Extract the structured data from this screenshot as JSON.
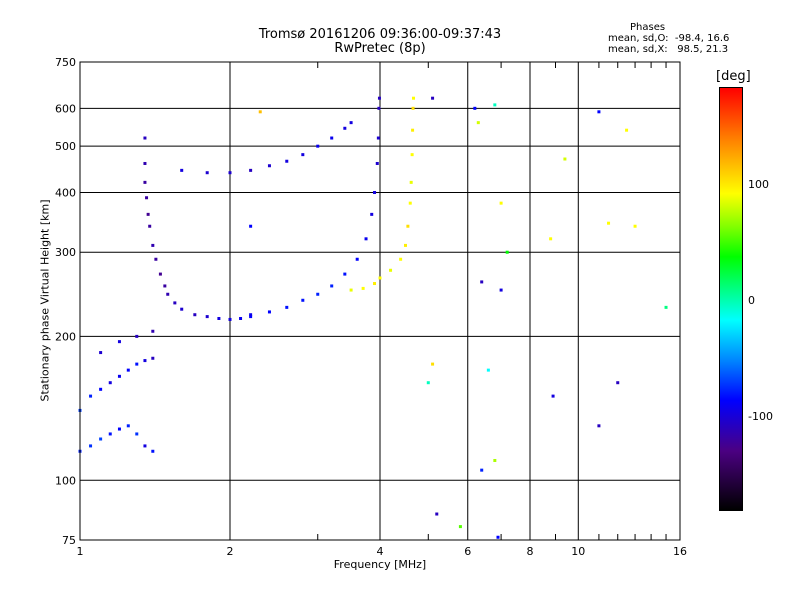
{
  "header": {
    "title_line1": "Tromsø 20161206 09:36:00-09:37:43",
    "title_line2": "RwPretec (8p)"
  },
  "stats": {
    "heading": "Phases",
    "line_o": "mean, sd,O:  -98.4, 16.6",
    "line_x": "mean, sd,X:   98.5, 21.3"
  },
  "colorbar": {
    "unit_label": "[deg]",
    "tick_labels": [
      "100",
      "0",
      "-100"
    ],
    "range": [
      -180,
      180
    ],
    "ticks": [
      100,
      0,
      -100
    ]
  },
  "chart_data": {
    "type": "scatter",
    "title": "Tromsø 20161206 09:36:00-09:37:43",
    "subtitle": "RwPretec (8p)",
    "xlabel": "Frequency [MHz]",
    "ylabel": "Stationary phase Virtual Height [km]",
    "x_scale": "log",
    "y_scale": "log",
    "xlim": [
      1,
      16
    ],
    "ylim": [
      75,
      750
    ],
    "x_ticks": [
      1,
      2,
      4,
      6,
      8,
      10,
      16
    ],
    "x_tick_labels": [
      "1",
      "2",
      "4",
      "6",
      "8",
      "10",
      "16"
    ],
    "y_ticks": [
      75,
      100,
      200,
      300,
      400,
      500,
      600,
      750
    ],
    "y_tick_labels": [
      "75",
      "100",
      "200",
      "300",
      "400",
      "500",
      "600",
      "750"
    ],
    "grid": true,
    "color_variable": "phase [deg]",
    "series": [
      {
        "trace": "o-low",
        "points": [
          [
            1.0,
            115
          ],
          [
            1.05,
            118
          ],
          [
            1.1,
            122
          ],
          [
            1.15,
            125
          ],
          [
            1.2,
            128
          ],
          [
            1.25,
            130
          ],
          [
            1.3,
            125
          ],
          [
            1.35,
            118
          ],
          [
            1.4,
            115
          ],
          [
            1.0,
            140
          ],
          [
            1.05,
            150
          ],
          [
            1.1,
            155
          ],
          [
            1.15,
            160
          ],
          [
            1.2,
            165
          ],
          [
            1.25,
            170
          ],
          [
            1.3,
            175
          ],
          [
            1.35,
            178
          ],
          [
            1.4,
            180
          ],
          [
            1.1,
            185
          ],
          [
            1.2,
            195
          ],
          [
            1.3,
            200
          ],
          [
            1.4,
            205
          ]
        ],
        "phase": [
          -90,
          -85,
          -80,
          -95,
          -100,
          -90,
          -85,
          -110,
          -95,
          -80,
          -90,
          -100,
          -110,
          -105,
          -100,
          -95,
          -110,
          -120,
          -115,
          -110,
          -120,
          -125
        ]
      },
      {
        "trace": "o-F1-cusp",
        "points": [
          [
            1.35,
            520
          ],
          [
            1.35,
            460
          ],
          [
            1.35,
            420
          ],
          [
            1.36,
            390
          ],
          [
            1.37,
            360
          ],
          [
            1.38,
            340
          ],
          [
            1.4,
            310
          ],
          [
            1.42,
            290
          ],
          [
            1.45,
            270
          ],
          [
            1.48,
            255
          ],
          [
            1.5,
            245
          ],
          [
            1.55,
            235
          ],
          [
            1.6,
            228
          ],
          [
            1.7,
            222
          ],
          [
            1.8,
            220
          ],
          [
            1.9,
            218
          ],
          [
            2.0,
            217
          ],
          [
            2.1,
            218
          ],
          [
            2.2,
            220
          ]
        ],
        "phase": [
          -120,
          -125,
          -130,
          -130,
          -135,
          -130,
          -125,
          -130,
          -135,
          -130,
          -125,
          -120,
          -115,
          -120,
          -115,
          -110,
          -110,
          -105,
          -100
        ]
      },
      {
        "trace": "o-F2",
        "points": [
          [
            2.2,
            222
          ],
          [
            2.4,
            225
          ],
          [
            2.6,
            230
          ],
          [
            2.8,
            238
          ],
          [
            3.0,
            245
          ],
          [
            3.2,
            255
          ],
          [
            3.4,
            270
          ],
          [
            3.6,
            290
          ],
          [
            3.75,
            320
          ],
          [
            3.85,
            360
          ],
          [
            3.9,
            400
          ],
          [
            3.95,
            460
          ],
          [
            3.97,
            520
          ],
          [
            3.98,
            600
          ],
          [
            3.99,
            630
          ]
        ],
        "phase": [
          -105,
          -100,
          -95,
          -95,
          -90,
          -90,
          -95,
          -100,
          -105,
          -110,
          -110,
          -115,
          -115,
          -120,
          -120
        ]
      },
      {
        "trace": "x-F2",
        "points": [
          [
            3.5,
            250
          ],
          [
            3.7,
            252
          ],
          [
            3.9,
            258
          ],
          [
            4.0,
            265
          ],
          [
            4.2,
            275
          ],
          [
            4.4,
            290
          ],
          [
            4.5,
            310
          ],
          [
            4.55,
            340
          ],
          [
            4.6,
            380
          ],
          [
            4.62,
            420
          ],
          [
            4.64,
            480
          ],
          [
            4.65,
            540
          ],
          [
            4.66,
            600
          ],
          [
            4.67,
            630
          ]
        ],
        "phase": [
          95,
          100,
          105,
          100,
          95,
          100,
          105,
          110,
          100,
          95,
          100,
          105,
          110,
          100
        ]
      },
      {
        "trace": "o-upper",
        "points": [
          [
            1.6,
            445
          ],
          [
            1.8,
            440
          ],
          [
            2.0,
            440
          ],
          [
            2.2,
            445
          ],
          [
            2.4,
            455
          ],
          [
            2.6,
            465
          ],
          [
            2.8,
            480
          ],
          [
            3.0,
            500
          ],
          [
            3.2,
            520
          ],
          [
            3.4,
            545
          ],
          [
            3.5,
            560
          ]
        ],
        "phase": [
          -110,
          -115,
          -115,
          -120,
          -115,
          -110,
          -110,
          -105,
          -105,
          -110,
          -110
        ]
      },
      {
        "trace": "scattered",
        "points": [
          [
            6.2,
            600
          ],
          [
            6.3,
            560
          ],
          [
            6.8,
            610
          ],
          [
            7.0,
            380
          ],
          [
            6.4,
            260
          ],
          [
            7.0,
            250
          ],
          [
            6.6,
            170
          ],
          [
            6.8,
            110
          ],
          [
            6.4,
            105
          ],
          [
            8.8,
            320
          ],
          [
            9.4,
            470
          ],
          [
            11.0,
            590
          ],
          [
            11.5,
            345
          ],
          [
            12.5,
            540
          ],
          [
            13.0,
            340
          ],
          [
            15.0,
            230
          ],
          [
            8.9,
            150
          ],
          [
            11.0,
            130
          ],
          [
            12.0,
            160
          ],
          [
            5.1,
            175
          ],
          [
            5.0,
            160
          ],
          [
            5.2,
            85
          ],
          [
            5.8,
            80
          ],
          [
            2.3,
            590
          ],
          [
            2.2,
            340
          ],
          [
            5.1,
            630
          ],
          [
            7.2,
            300
          ],
          [
            6.9,
            76
          ]
        ],
        "phase": [
          -100,
          90,
          10,
          100,
          -120,
          -110,
          0,
          80,
          -90,
          100,
          90,
          -100,
          100,
          100,
          100,
          20,
          -110,
          -120,
          -120,
          110,
          10,
          -120,
          60,
          120,
          -100,
          -120,
          40,
          -100
        ]
      }
    ]
  }
}
